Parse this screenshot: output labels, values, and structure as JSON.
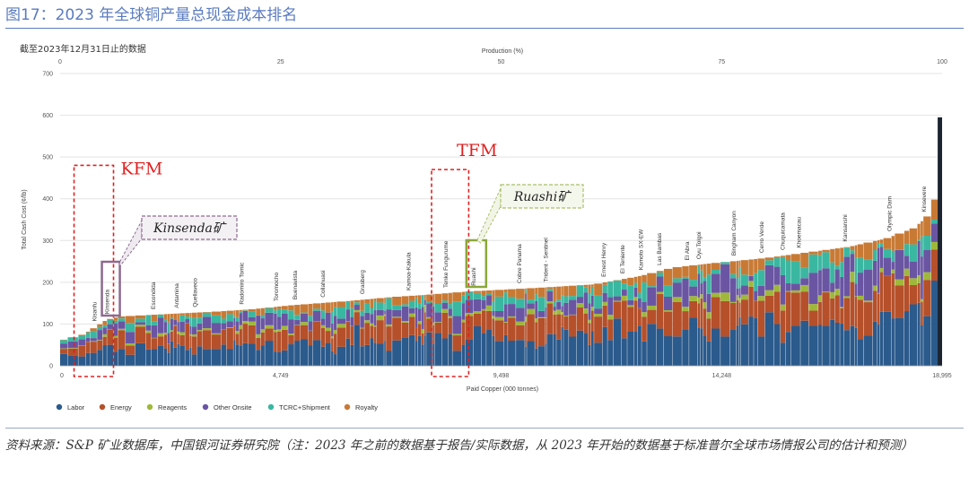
{
  "page": {
    "figure_title": "图17：2023 年全球铜产量总现金成本排名",
    "source": "资料来源：S&P 矿业数据库，中国银河证券研究院（注：2023 年之前的数据基于报告/实际数据，从 2023 年开始的数据基于标准普尔全球市场情报公司的估计和预测）"
  },
  "chart_data": {
    "type": "bar",
    "subtype": "cost-curve",
    "note": "截至2023年12月31日止的数据",
    "top_axis_title": "Production (%)",
    "top_ticks": [
      "0",
      "25",
      "50",
      "75",
      "100"
    ],
    "ylabel": "Total Cash Cost (¢/lb)",
    "xlabel": "Paid Copper (000 tonnes)",
    "ylim": [
      0,
      700
    ],
    "y_ticks": [
      "0",
      "100",
      "200",
      "300",
      "400",
      "500",
      "600",
      "700"
    ],
    "x_ticks": [
      "0",
      "4,749",
      "9,498",
      "14,248",
      "18,995"
    ],
    "xlim": [
      0,
      18995
    ],
    "grid": true,
    "legend_position": "bottom",
    "series": [
      {
        "name": "Labor",
        "color": "#2b5a8c"
      },
      {
        "name": "Energy",
        "color": "#b5502a"
      },
      {
        "name": "Reagents",
        "color": "#9fb83a"
      },
      {
        "name": "Other Onsite",
        "color": "#6a55a3"
      },
      {
        "name": "TCRC+Shipment",
        "color": "#3ab7a1"
      },
      {
        "name": "Royalty",
        "color": "#c87a35"
      }
    ],
    "curve": [
      {
        "x": 0,
        "y": 60
      },
      {
        "x": 500,
        "y": 75
      },
      {
        "x": 800,
        "y": 95
      },
      {
        "x": 1000,
        "y": 110
      },
      {
        "x": 1300,
        "y": 118
      },
      {
        "x": 2500,
        "y": 125
      },
      {
        "x": 3400,
        "y": 130
      },
      {
        "x": 4100,
        "y": 135
      },
      {
        "x": 5000,
        "y": 145
      },
      {
        "x": 6200,
        "y": 155
      },
      {
        "x": 7200,
        "y": 165
      },
      {
        "x": 7900,
        "y": 170
      },
      {
        "x": 8800,
        "y": 178
      },
      {
        "x": 9500,
        "y": 182
      },
      {
        "x": 10500,
        "y": 188
      },
      {
        "x": 11500,
        "y": 195
      },
      {
        "x": 12500,
        "y": 215
      },
      {
        "x": 13200,
        "y": 235
      },
      {
        "x": 14000,
        "y": 245
      },
      {
        "x": 15200,
        "y": 258
      },
      {
        "x": 16000,
        "y": 270
      },
      {
        "x": 17000,
        "y": 285
      },
      {
        "x": 17800,
        "y": 305
      },
      {
        "x": 18400,
        "y": 330
      },
      {
        "x": 18700,
        "y": 360
      },
      {
        "x": 18850,
        "y": 400
      },
      {
        "x": 18995,
        "y": 595
      }
    ],
    "mine_labels": [
      {
        "name": "Kisanfu",
        "x": 780
      },
      {
        "name": "Kinsenda",
        "x": 1050
      },
      {
        "name": "Escondida",
        "x": 2050
      },
      {
        "name": "Antamina",
        "x": 2550
      },
      {
        "name": "Quellaveco",
        "x": 2950
      },
      {
        "name": "Radomiro Tomic",
        "x": 3950
      },
      {
        "name": "Toromocho",
        "x": 4700
      },
      {
        "name": "Buenavista",
        "x": 5100
      },
      {
        "name": "Collahuasi",
        "x": 5700
      },
      {
        "name": "Grasberg",
        "x": 6550
      },
      {
        "name": "Kamoa-Kakula",
        "x": 7550
      },
      {
        "name": "Tenke Fungurume",
        "x": 8350
      },
      {
        "name": "Ruashi",
        "x": 8950
      },
      {
        "name": "Cobre Panama",
        "x": 9930
      },
      {
        "name": "Trident - Sentinel",
        "x": 10500
      },
      {
        "name": "Ernest Henry",
        "x": 11750
      },
      {
        "name": "El Teniente",
        "x": 12150
      },
      {
        "name": "Kamoto SX-EW",
        "x": 12550
      },
      {
        "name": "Las Bambas",
        "x": 12950
      },
      {
        "name": "El Abra",
        "x": 13550
      },
      {
        "name": "Oyu Tolgoi",
        "x": 13800
      },
      {
        "name": "Bingham Canyon",
        "x": 14550
      },
      {
        "name": "Cerro Verde",
        "x": 15150
      },
      {
        "name": "Chuquicamata",
        "x": 15600
      },
      {
        "name": "Khoemacau",
        "x": 15950
      },
      {
        "name": "Kansanshi",
        "x": 16950
      },
      {
        "name": "Olympic Dam",
        "x": 17900
      },
      {
        "name": "Kinsevere",
        "x": 18650
      }
    ],
    "annotations": [
      {
        "text": "KFM",
        "x_from": 300,
        "x_to": 1150,
        "y_from": 0,
        "y_to": 480
      },
      {
        "text": "TFM",
        "x_from": 8000,
        "x_to": 8800,
        "y_from": 0,
        "y_to": 470
      },
      {
        "text": "Kinsenda矿",
        "target": "Kinsenda"
      },
      {
        "text": "Ruashi矿",
        "target": "Ruashi"
      }
    ]
  }
}
